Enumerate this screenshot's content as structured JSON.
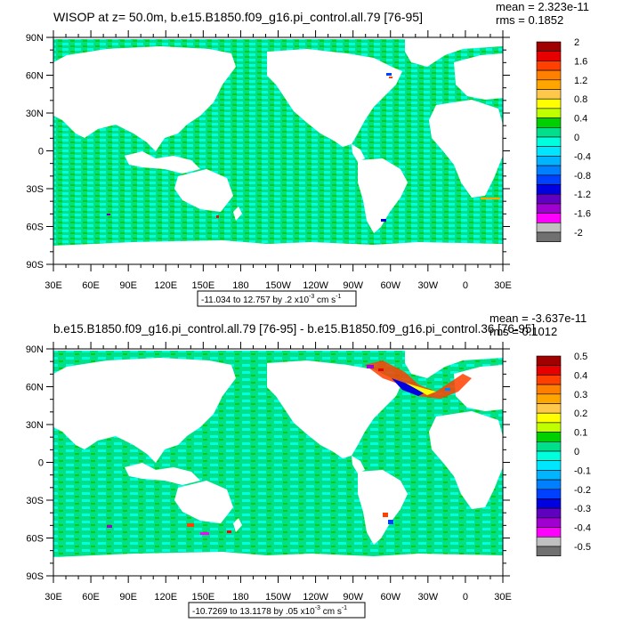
{
  "chart_data": [
    {
      "type": "heatmap",
      "title": "WISOP at z=  50.0m, b.e15.B1850.f09_g16.pi_control.all.79 [76-95]",
      "stats": {
        "mean": "mean = 2.323e-11",
        "rms": "rms = 0.1852"
      },
      "y_ticks": [
        "90N",
        "60N",
        "30N",
        "0",
        "30S",
        "60S",
        "90S"
      ],
      "x_ticks": [
        "30E",
        "60E",
        "90E",
        "120E",
        "150E",
        "180",
        "150W",
        "120W",
        "90W",
        "60W",
        "30W",
        "0",
        "30E"
      ],
      "xlim": [
        30,
        390
      ],
      "ylim": [
        -90,
        90
      ],
      "range_text": "-11.034 to 12.757 by .2 x10",
      "range_exp": "-3",
      "range_unit": " cm s",
      "range_unit_exp": "-1",
      "colorbar": {
        "levels": [
          "2",
          "1.6",
          "1.2",
          "0.8",
          "0.4",
          "0",
          "-0.4",
          "-0.8",
          "-1.2",
          "-1.6",
          "-2"
        ],
        "colors": [
          "#a00000",
          "#e60000",
          "#ff4000",
          "#ff8000",
          "#ffa500",
          "#ffc84a",
          "#ffff00",
          "#bfff00",
          "#00d000",
          "#00e08a",
          "#00ffdc",
          "#00e6ff",
          "#00b4ff",
          "#0080ff",
          "#0040ff",
          "#0000e0",
          "#6000c0",
          "#a000d0",
          "#ff00ff",
          "#c0c0c0",
          "#707070"
        ]
      }
    },
    {
      "type": "heatmap",
      "title": "b.e15.B1850.f09_g16.pi_control.all.79 [76-95] - b.e15.B1850.f09_g16.pi_control.36 [76-95]",
      "stats": {
        "mean": "mean = -3.637e-11",
        "rms": "rms = 0.1012"
      },
      "y_ticks": [
        "90N",
        "60N",
        "30N",
        "0",
        "30S",
        "60S",
        "90S"
      ],
      "x_ticks": [
        "30E",
        "60E",
        "90E",
        "120E",
        "150E",
        "180",
        "150W",
        "120W",
        "90W",
        "60W",
        "30W",
        "0",
        "30E"
      ],
      "xlim": [
        30,
        390
      ],
      "ylim": [
        -90,
        90
      ],
      "range_text": "-10.7269 to 13.1178 by .05 x10",
      "range_exp": "-3",
      "range_unit": " cm s",
      "range_unit_exp": "-1",
      "colorbar": {
        "levels": [
          "0.5",
          "0.4",
          "0.3",
          "0.2",
          "0.1",
          "0",
          "-0.1",
          "-0.2",
          "-0.3",
          "-0.4",
          "-0.5"
        ],
        "colors": [
          "#a00000",
          "#e60000",
          "#ff4000",
          "#ff8000",
          "#ffa500",
          "#ffc84a",
          "#ffff00",
          "#bfff00",
          "#00d000",
          "#00e08a",
          "#00ffdc",
          "#00e6ff",
          "#00b4ff",
          "#0080ff",
          "#0040ff",
          "#0000e0",
          "#6000c0",
          "#a000d0",
          "#ff00ff",
          "#c0c0c0",
          "#707070"
        ]
      }
    }
  ]
}
